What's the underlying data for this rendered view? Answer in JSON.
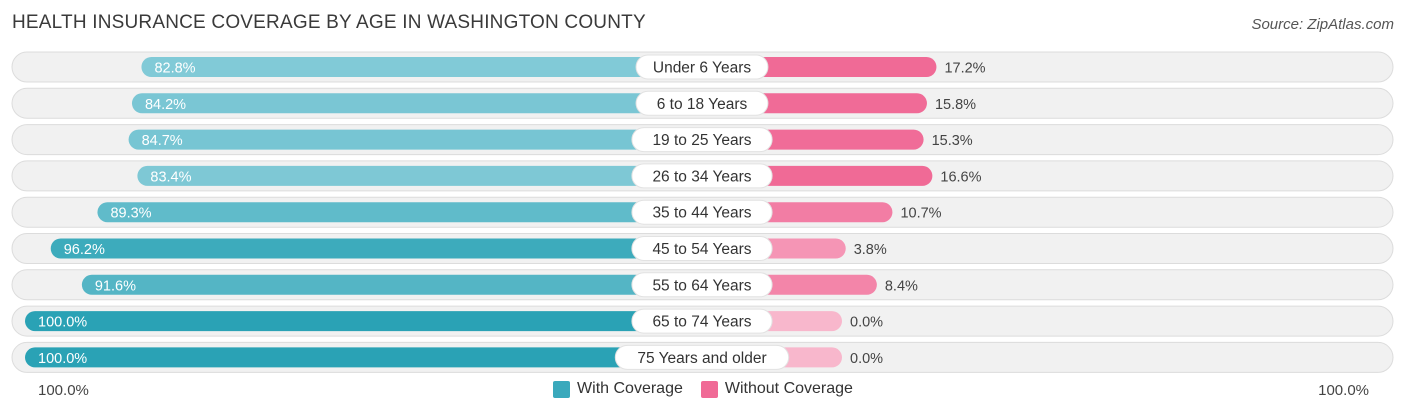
{
  "title": "HEALTH INSURANCE COVERAGE BY AGE IN WASHINGTON COUNTY",
  "source": "Source: ZipAtlas.com",
  "colors": {
    "with_coverage": "#3aa9bc",
    "without_coverage": "#f06a96",
    "track": "#efefef"
  },
  "legend": {
    "with_label": "With Coverage",
    "without_label": "Without Coverage"
  },
  "axis": {
    "left_label": "100.0%",
    "right_label": "100.0%"
  },
  "chart_data": {
    "type": "bar",
    "orientation": "diverging-horizontal",
    "title": "HEALTH INSURANCE COVERAGE BY AGE IN WASHINGTON COUNTY",
    "categories": [
      "Under 6 Years",
      "6 to 18 Years",
      "19 to 25 Years",
      "26 to 34 Years",
      "35 to 44 Years",
      "45 to 54 Years",
      "55 to 64 Years",
      "65 to 74 Years",
      "75 Years and older"
    ],
    "series": [
      {
        "name": "With Coverage",
        "values": [
          82.8,
          84.2,
          84.7,
          83.4,
          89.3,
          96.2,
          91.6,
          100.0,
          100.0
        ],
        "labels": [
          "82.8%",
          "84.2%",
          "84.7%",
          "83.4%",
          "89.3%",
          "96.2%",
          "91.6%",
          "100.0%",
          "100.0%"
        ]
      },
      {
        "name": "Without Coverage",
        "values": [
          17.2,
          15.8,
          15.3,
          16.6,
          10.7,
          3.8,
          8.4,
          0.0,
          0.0
        ],
        "labels": [
          "17.2%",
          "15.8%",
          "15.3%",
          "16.6%",
          "10.7%",
          "3.8%",
          "8.4%",
          "0.0%",
          "0.0%"
        ]
      }
    ],
    "xlim": [
      -100,
      100
    ],
    "legend_position": "bottom-center"
  }
}
